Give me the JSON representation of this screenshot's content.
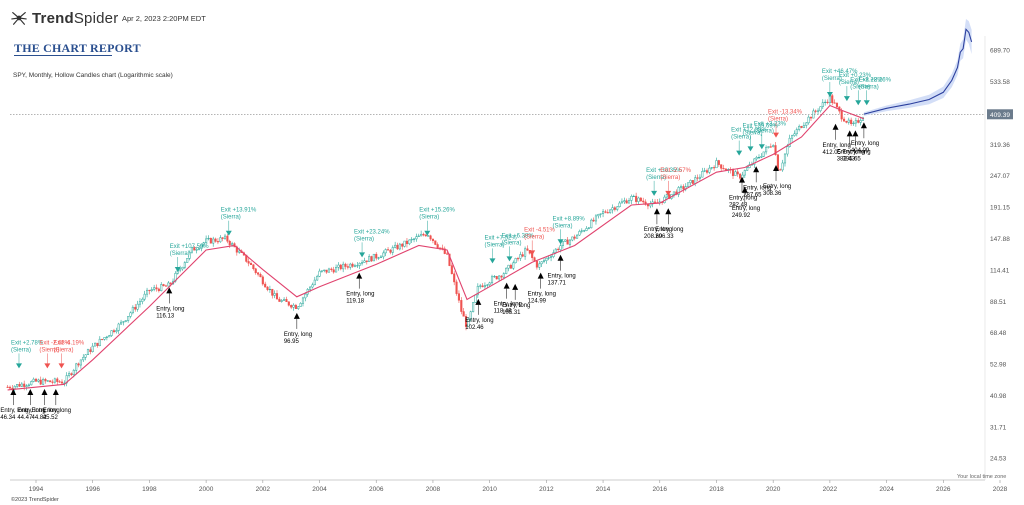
{
  "header": {
    "brand_prefix": "Trend",
    "brand_suffix": "Spider",
    "logo_icon": "trendspider-spider-icon",
    "date": "Apr 2, 2023 2:20PM EDT"
  },
  "report_title": "THE CHART REPORT",
  "subtitle": "SPY, Monthly, Hollow Candles chart (Logarithmic scale)",
  "timezone_note": "Your local time zone",
  "copyright": "©2023 TrendSpider",
  "colors": {
    "up": "#26a69a",
    "down": "#ef5350",
    "candle_dark": "#222222",
    "ma_line": "#e0436e",
    "forecast_line": "#2b3f9e",
    "forecast_band": "#c8d6f5",
    "exit_win": "#26a69a",
    "exit_loss": "#ef5350",
    "entry_marker": "#000000",
    "price_badge": "#6b7b8c"
  },
  "chart_data": {
    "type": "candlestick",
    "scale": "log",
    "grid": false,
    "x_ticks": [
      "1994",
      "1996",
      "1998",
      "2000",
      "2002",
      "2004",
      "2006",
      "2008",
      "2010",
      "2012",
      "2014",
      "2016",
      "2018",
      "2020",
      "2022",
      "2024",
      "2026",
      "2028"
    ],
    "y_ticks": [
      "689.70",
      "533.58",
      "412.80",
      "319.36",
      "247.07",
      "191.15",
      "147.88",
      "114.41",
      "88.51",
      "68.48",
      "52.98",
      "40.98",
      "31.71",
      "24.53"
    ],
    "ylim": [
      22,
      890
    ],
    "current_price": "409.39",
    "close_path": [
      [
        1993.0,
        44
      ],
      [
        1994.0,
        46
      ],
      [
        1995.0,
        46
      ],
      [
        1995.5,
        54
      ],
      [
        1996.0,
        61
      ],
      [
        1997.0,
        74
      ],
      [
        1998.0,
        97
      ],
      [
        1998.7,
        101
      ],
      [
        1999.5,
        135
      ],
      [
        2000.0,
        145
      ],
      [
        2000.7,
        148
      ],
      [
        2001.5,
        122
      ],
      [
        2002.5,
        90
      ],
      [
        2003.2,
        85
      ],
      [
        2004.0,
        112
      ],
      [
        2005.0,
        119
      ],
      [
        2006.0,
        128
      ],
      [
        2007.0,
        142
      ],
      [
        2007.8,
        155
      ],
      [
        2008.5,
        128
      ],
      [
        2009.0,
        82
      ],
      [
        2009.2,
        72
      ],
      [
        2009.6,
        100
      ],
      [
        2010.5,
        112
      ],
      [
        2011.3,
        135
      ],
      [
        2011.7,
        118
      ],
      [
        2012.5,
        140
      ],
      [
        2013.0,
        150
      ],
      [
        2014.0,
        183
      ],
      [
        2015.0,
        207
      ],
      [
        2015.8,
        195
      ],
      [
        2016.5,
        215
      ],
      [
        2017.0,
        230
      ],
      [
        2018.0,
        275
      ],
      [
        2018.8,
        245
      ],
      [
        2019.5,
        290
      ],
      [
        2020.0,
        325
      ],
      [
        2020.2,
        255
      ],
      [
        2020.6,
        335
      ],
      [
        2021.0,
        375
      ],
      [
        2022.0,
        470
      ],
      [
        2022.4,
        405
      ],
      [
        2022.8,
        370
      ],
      [
        2023.2,
        409
      ]
    ],
    "ma_path": [
      [
        1993.0,
        43
      ],
      [
        1995.0,
        45
      ],
      [
        1996.0,
        55
      ],
      [
        1998.0,
        85
      ],
      [
        2000.0,
        135
      ],
      [
        2001.0,
        140
      ],
      [
        2002.0,
        115
      ],
      [
        2003.2,
        92
      ],
      [
        2004.0,
        100
      ],
      [
        2006.0,
        120
      ],
      [
        2007.5,
        140
      ],
      [
        2008.5,
        135
      ],
      [
        2009.2,
        90
      ],
      [
        2010.0,
        100
      ],
      [
        2011.5,
        122
      ],
      [
        2013.0,
        140
      ],
      [
        2015.0,
        195
      ],
      [
        2016.0,
        198
      ],
      [
        2018.0,
        255
      ],
      [
        2019.0,
        265
      ],
      [
        2020.0,
        295
      ],
      [
        2021.0,
        340
      ],
      [
        2022.0,
        440
      ],
      [
        2022.5,
        420
      ],
      [
        2023.2,
        395
      ]
    ],
    "forecast_path": [
      [
        2023.2,
        410
      ],
      [
        2024.0,
        430
      ],
      [
        2024.8,
        445
      ],
      [
        2025.5,
        462
      ],
      [
        2026.0,
        490
      ],
      [
        2026.3,
        540
      ],
      [
        2026.5,
        600
      ],
      [
        2026.6,
        680
      ],
      [
        2026.7,
        700
      ],
      [
        2026.8,
        820
      ],
      [
        2026.9,
        800
      ],
      [
        2027.0,
        740
      ]
    ],
    "entries": [
      {
        "label": "Entry, long",
        "value": "46.34",
        "year": 1993.2,
        "price": 44
      },
      {
        "label": "Entry, long",
        "value": "44.47",
        "year": 1993.8,
        "price": 44
      },
      {
        "label": "Entry, long",
        "value": "44.82",
        "year": 1994.3,
        "price": 44
      },
      {
        "label": "Entry, long",
        "value": "45.52",
        "year": 1994.7,
        "price": 44
      },
      {
        "label": "Entry, long",
        "value": "116.13",
        "year": 1998.7,
        "price": 101
      },
      {
        "label": "Entry, long",
        "value": "96.95",
        "year": 2003.2,
        "price": 82
      },
      {
        "label": "Entry, long",
        "value": "119.18",
        "year": 2005.4,
        "price": 114
      },
      {
        "label": "Entry, long",
        "value": "102.46",
        "year": 2009.6,
        "price": 92
      },
      {
        "label": "Entry, long",
        "value": "118.49",
        "year": 2010.6,
        "price": 105
      },
      {
        "label": "Entry, long",
        "value": "105.31",
        "year": 2010.9,
        "price": 104
      },
      {
        "label": "Entry, long",
        "value": "124.99",
        "year": 2011.8,
        "price": 114
      },
      {
        "label": "Entry, long",
        "value": "137.71",
        "year": 2012.5,
        "price": 132
      },
      {
        "label": "Entry, long",
        "value": "208.69",
        "year": 2015.9,
        "price": 193
      },
      {
        "label": "Entry, long",
        "value": "206.33",
        "year": 2016.3,
        "price": 193
      },
      {
        "label": "Entry, long",
        "value": "282.48",
        "year": 2018.9,
        "price": 250
      },
      {
        "label": "Entry, long",
        "value": "249.92",
        "year": 2019.0,
        "price": 230
      },
      {
        "label": "Entry, long",
        "value": "287.65",
        "year": 2019.4,
        "price": 272
      },
      {
        "label": "Entry, long",
        "value": "308.36",
        "year": 2020.1,
        "price": 275
      },
      {
        "label": "Entry, long",
        "value": "412.05",
        "year": 2022.2,
        "price": 385
      },
      {
        "label": "Entry, long",
        "value": "382.43",
        "year": 2022.7,
        "price": 365
      },
      {
        "label": "Entry, long",
        "value": "395.65",
        "year": 2022.9,
        "price": 365
      },
      {
        "label": "Entry, long",
        "value": "404.09",
        "year": 2023.2,
        "price": 390
      }
    ],
    "exits": [
      {
        "label": "Exit +2.78%",
        "tag": "(Sierra)",
        "win": true,
        "year": 1993.4,
        "price": 50
      },
      {
        "label": "Exit -2.63%",
        "tag": "(Sierra)",
        "win": false,
        "year": 1994.4,
        "price": 50
      },
      {
        "label": "Exit -4.19%",
        "tag": "(Sierra)",
        "win": false,
        "year": 1994.9,
        "price": 50
      },
      {
        "label": "Exit +107.59%",
        "tag": "(Sierra)",
        "win": true,
        "year": 1999.0,
        "price": 110
      },
      {
        "label": "Exit +13.91%",
        "tag": "(Sierra)",
        "win": true,
        "year": 2000.8,
        "price": 148
      },
      {
        "label": "Exit +23.24%",
        "tag": "(Sierra)",
        "win": true,
        "year": 2005.5,
        "price": 124
      },
      {
        "label": "Exit +15.26%",
        "tag": "(Sierra)",
        "win": true,
        "year": 2007.8,
        "price": 148
      },
      {
        "label": "Exit +7.52%",
        "tag": "(Sierra)",
        "win": true,
        "year": 2010.1,
        "price": 118
      },
      {
        "label": "Exit +6.38%",
        "tag": "(Sierra)",
        "win": true,
        "year": 2010.7,
        "price": 120
      },
      {
        "label": "Exit -4.51%",
        "tag": "(Sierra)",
        "win": false,
        "year": 2011.5,
        "price": 126
      },
      {
        "label": "Exit +8.89%",
        "tag": "(Sierra)",
        "win": true,
        "year": 2012.5,
        "price": 138
      },
      {
        "label": "Exit +30.35%",
        "tag": "(Sierra)",
        "win": true,
        "year": 2015.8,
        "price": 205
      },
      {
        "label": "Exit -2.57%",
        "tag": "(Sierra)",
        "win": false,
        "year": 2016.3,
        "price": 205
      },
      {
        "label": "Exit +12.09%",
        "tag": "(Sierra)",
        "win": true,
        "year": 2018.8,
        "price": 285
      },
      {
        "label": "Exit +39.69%",
        "tag": "(Sierra)",
        "win": true,
        "year": 2019.2,
        "price": 295
      },
      {
        "label": "Exit +3.23%",
        "tag": "(Sierra)",
        "win": true,
        "year": 2019.6,
        "price": 300
      },
      {
        "label": "Exit -13.34%",
        "tag": "(Sierra)",
        "win": false,
        "year": 2020.1,
        "price": 330
      },
      {
        "label": "Exit +46.47%",
        "tag": "(Sierra)",
        "win": true,
        "year": 2022.0,
        "price": 460
      },
      {
        "label": "Exit +0.23%",
        "tag": "(Sierra)",
        "win": true,
        "year": 2022.6,
        "price": 445
      },
      {
        "label": "Exit +3.28%",
        "tag": "(Sierra)",
        "win": true,
        "year": 2023.0,
        "price": 430
      },
      {
        "label": "Exit +2.26%",
        "tag": "(Sierra)",
        "win": true,
        "year": 2023.3,
        "price": 430
      }
    ]
  }
}
